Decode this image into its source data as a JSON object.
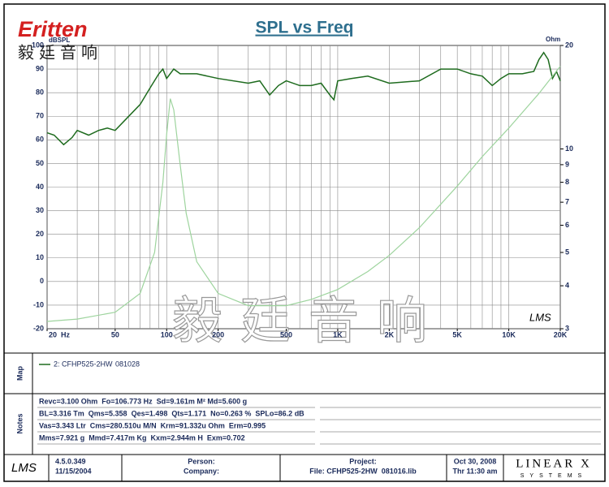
{
  "logo": {
    "brand": "Eritten",
    "chinese": "毅廷音响"
  },
  "chart_data": {
    "type": "line",
    "title": "SPL vs Freq",
    "y_label": "dBSPL",
    "y2_label": "Ohm",
    "watermark": "毅廷音响",
    "corner_mark": "LMS",
    "xscale": "log",
    "y2scale": "log",
    "grid": true,
    "xlim": [
      20,
      20000
    ],
    "ylim": [
      -20,
      100
    ],
    "y2lim": [
      3,
      20
    ],
    "xticks": [
      {
        "value": 20,
        "label": "20  Hz"
      },
      50,
      100,
      200,
      500,
      {
        "value": 1000,
        "label": "1K"
      },
      {
        "value": 2000,
        "label": "2K"
      },
      {
        "value": 5000,
        "label": "5K"
      },
      {
        "value": 10000,
        "label": "10K"
      },
      {
        "value": 20000,
        "label": "20K"
      }
    ],
    "xgrid": [
      20,
      30,
      40,
      50,
      60,
      70,
      80,
      90,
      100,
      200,
      300,
      400,
      500,
      600,
      700,
      800,
      900,
      1000,
      2000,
      3000,
      4000,
      5000,
      6000,
      7000,
      8000,
      9000,
      10000,
      20000
    ],
    "yticks": [
      -20,
      -10,
      0,
      10,
      20,
      30,
      40,
      50,
      60,
      70,
      80,
      90,
      100
    ],
    "y2ticks": [
      3,
      4,
      5,
      6,
      7,
      8,
      9,
      10,
      20
    ],
    "series": [
      {
        "name": "2: CFHP525-2HW",
        "color": "#1e6b1e",
        "x": [
          20,
          22,
          25,
          28,
          30,
          35,
          40,
          45,
          50,
          60,
          70,
          80,
          90,
          95,
          100,
          110,
          120,
          150,
          200,
          300,
          350,
          400,
          450,
          500,
          600,
          700,
          800,
          900,
          950,
          1000,
          1200,
          1500,
          2000,
          3000,
          4000,
          5000,
          6000,
          7000,
          8000,
          9000,
          10000,
          12000,
          14000,
          15000,
          16000,
          17000,
          18000,
          19000,
          20000
        ],
        "values": [
          63,
          62,
          58,
          61,
          64,
          62,
          64,
          65,
          64,
          70,
          75,
          82,
          88,
          90,
          86,
          90,
          88,
          88,
          86,
          84,
          85,
          79,
          83,
          85,
          83,
          83,
          84,
          79,
          77,
          85,
          86,
          87,
          84,
          85,
          90,
          90,
          88,
          87,
          83,
          86,
          88,
          88,
          89,
          94,
          97,
          94,
          86,
          89,
          85
        ]
      },
      {
        "color": "#9ed49e",
        "axis": "y2",
        "x": [
          20,
          30,
          50,
          70,
          85,
          95,
          100,
          105,
          110,
          120,
          130,
          150,
          200,
          300,
          500,
          700,
          1000,
          1500,
          2000,
          3000,
          5000,
          7000,
          10000,
          15000,
          20000
        ],
        "values": [
          3.15,
          3.2,
          3.35,
          3.8,
          5.0,
          8.0,
          11,
          14,
          13,
          9,
          6.5,
          4.7,
          3.8,
          3.5,
          3.5,
          3.65,
          3.9,
          4.4,
          4.9,
          5.9,
          7.8,
          9.5,
          11.5,
          14.5,
          17.4
        ]
      }
    ]
  },
  "map": {
    "label": "Map",
    "code": "081028"
  },
  "notes": {
    "label": "Notes",
    "lines": [
      "Revc=3.100 Ohm  Fo=106.773 Hz  Sd=9.161m M² Md=5.600 g",
      "BL=3.316 Tm  Qms=5.358  Qes=1.498  Qts=1.171  No=0.263 %  SPLo=86.2 dB",
      "Vas=3.343 Ltr  Cms=280.510u M/N  Krm=91.332u Ohm  Erm=0.995",
      "Mms=7.921 g  Mmd=7.417m Kg  Kxm=2.944m H  Exm=0.702"
    ]
  },
  "footer": {
    "logo": "LMS",
    "version": "4.5.0.349",
    "version_date": "11/15/2004",
    "person": "Person:",
    "company": "Company:",
    "project": "Project:",
    "file": "File: CFHP525-2HW  081016.lib",
    "date": "Oct 30, 2008",
    "time": "Thr 11:30 am",
    "brand": "LINEAR X",
    "brand_sub": "SYSTEMS"
  }
}
